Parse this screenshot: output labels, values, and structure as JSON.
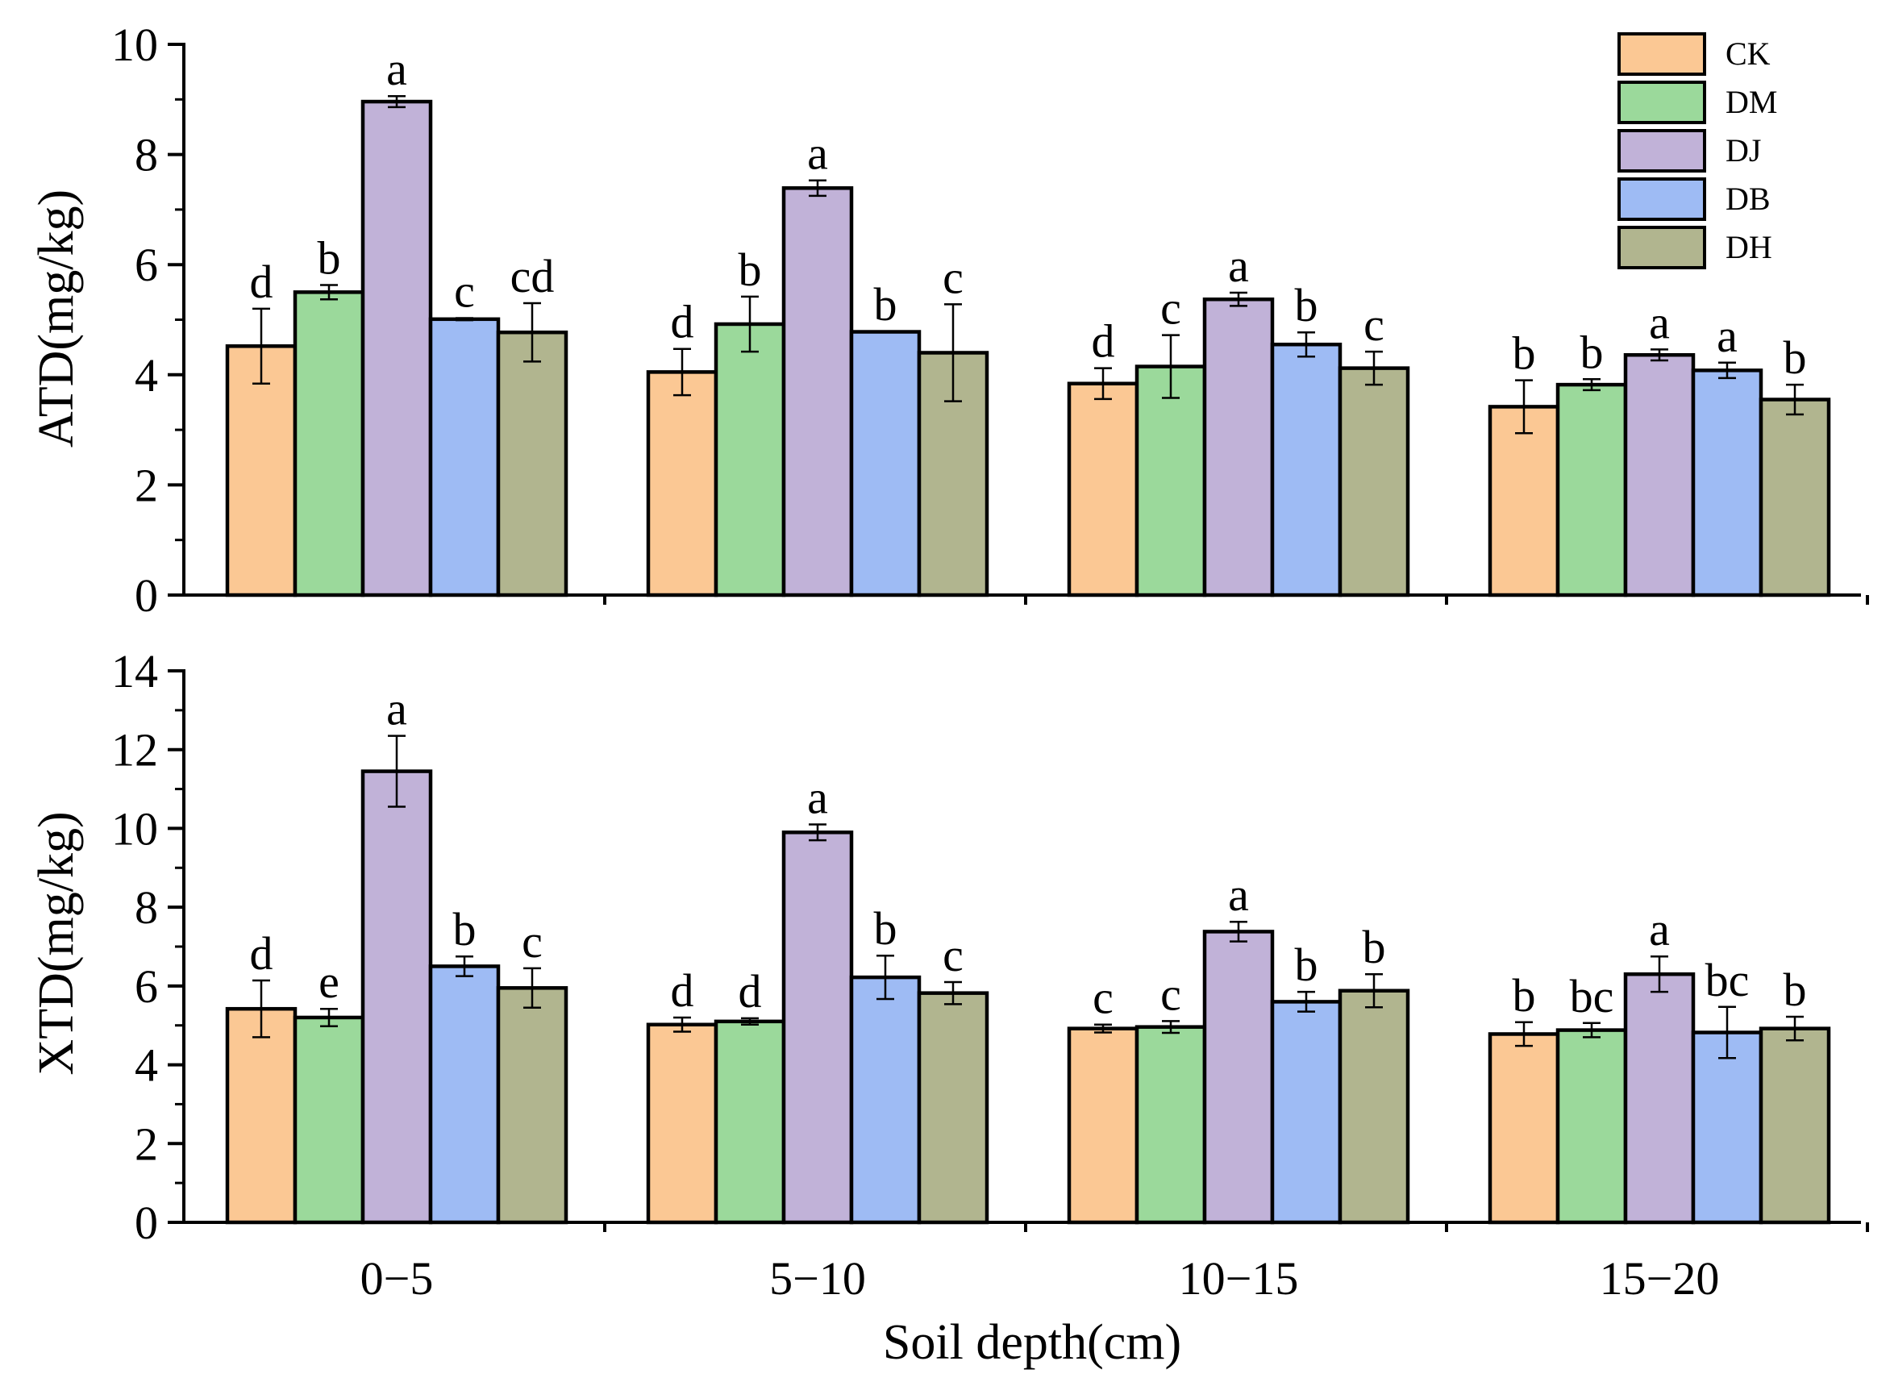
{
  "colors": {
    "CK": "#fbc894",
    "DM": "#9bd99b",
    "DJ": "#c1b2d8",
    "DB": "#9ebbf4",
    "DH": "#b1b58f"
  },
  "chart_data": [
    {
      "type": "bar",
      "title": "",
      "xlabel": "Soil depth(cm)",
      "ylabel": "ATD(mg/kg)",
      "ylim": [
        0,
        10
      ],
      "yticks": [
        "0",
        "2",
        "4",
        "6",
        "8",
        "10"
      ],
      "categories": [
        "0-5",
        "5-10",
        "10-15",
        "15-20"
      ],
      "legend": {
        "placement": "top-right",
        "entries": [
          "CK",
          "DM",
          "DJ",
          "DB",
          "DH"
        ]
      },
      "series": [
        {
          "name": "CK",
          "values": [
            4.52,
            4.05,
            3.84,
            3.42
          ],
          "errors": [
            0.68,
            0.42,
            0.28,
            0.48
          ],
          "letters": [
            "d",
            "d",
            "d",
            "b"
          ]
        },
        {
          "name": "DM",
          "values": [
            5.5,
            4.92,
            4.15,
            3.82
          ],
          "errors": [
            0.13,
            0.5,
            0.57,
            0.1
          ],
          "letters": [
            "b",
            "b",
            "c",
            "b"
          ]
        },
        {
          "name": "DJ",
          "values": [
            8.96,
            7.39,
            5.37,
            4.36
          ],
          "errors": [
            0.1,
            0.14,
            0.12,
            0.1
          ],
          "letters": [
            "a",
            "a",
            "a",
            "a"
          ]
        },
        {
          "name": "DB",
          "values": [
            5.01,
            4.78,
            4.55,
            4.08
          ],
          "errors": [
            0.02,
            0.01,
            0.22,
            0.14
          ],
          "letters": [
            "c",
            "b",
            "b",
            "a"
          ]
        },
        {
          "name": "DH",
          "values": [
            4.77,
            4.4,
            4.12,
            3.55
          ],
          "errors": [
            0.53,
            0.88,
            0.3,
            0.27
          ],
          "letters": [
            "cd",
            "c",
            "c",
            "b"
          ]
        }
      ]
    },
    {
      "type": "bar",
      "title": "",
      "xlabel": "Soil depth(cm)",
      "ylabel": "XTD(mg/kg)",
      "ylim": [
        0,
        14
      ],
      "yticks": [
        "0",
        "2",
        "4",
        "6",
        "8",
        "10",
        "12",
        "14"
      ],
      "categories": [
        "0-5",
        "5-10",
        "10-15",
        "15-20"
      ],
      "series": [
        {
          "name": "CK",
          "values": [
            5.42,
            5.02,
            4.92,
            4.78
          ],
          "errors": [
            0.72,
            0.18,
            0.1,
            0.3
          ],
          "letters": [
            "d",
            "d",
            "c",
            "b"
          ]
        },
        {
          "name": "DM",
          "values": [
            5.2,
            5.1,
            4.96,
            4.88
          ],
          "errors": [
            0.22,
            0.08,
            0.15,
            0.18
          ],
          "letters": [
            "e",
            "d",
            "c",
            "bc"
          ]
        },
        {
          "name": "DJ",
          "values": [
            11.45,
            9.9,
            7.38,
            6.3
          ],
          "errors": [
            0.9,
            0.2,
            0.25,
            0.45
          ],
          "letters": [
            "a",
            "a",
            "a",
            "a"
          ]
        },
        {
          "name": "DB",
          "values": [
            6.5,
            6.22,
            5.6,
            4.82
          ],
          "errors": [
            0.25,
            0.55,
            0.25,
            0.65
          ],
          "letters": [
            "b",
            "b",
            "b",
            "bc"
          ]
        },
        {
          "name": "DH",
          "values": [
            5.95,
            5.82,
            5.88,
            4.92
          ],
          "errors": [
            0.5,
            0.28,
            0.42,
            0.3
          ],
          "letters": [
            "c",
            "c",
            "b",
            "b"
          ]
        }
      ]
    }
  ],
  "x_tick_labels": [
    "0−5",
    "5−10",
    "10−15",
    "15−20"
  ]
}
